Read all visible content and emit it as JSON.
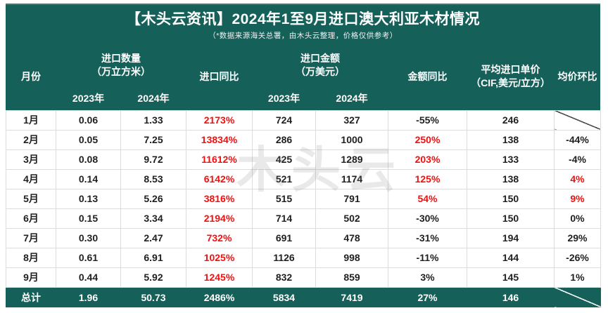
{
  "colors": {
    "green": "#16605a",
    "red": "#f40f0f",
    "cell_border": "#dcdcdc",
    "body_text": "#1f1f1f",
    "header_text": "#ffffff"
  },
  "watermark": "木头云",
  "chart_data": {
    "type": "table",
    "title": "【木头云资讯】2024年1至9月进口澳大利亚木材情况",
    "subtitle": "（*数据来源海关总署，由木头云整理，价格仅供参考）",
    "headers": {
      "month": "月份",
      "qty_group_line1": "进口数量",
      "qty_group_line2": "（万立方米）",
      "qty_yoy": "进口同比",
      "amt_group_line1": "进口金额",
      "amt_group_line2": "（万美元）",
      "amt_yoy": "金额同比",
      "avg_price_line1": "平均进口单价",
      "avg_price_line2": "（CIF,美元/立方）",
      "mom": "均价环比",
      "year_2023": "2023年",
      "year_2024": "2024年"
    },
    "rows": [
      {
        "month": "1月",
        "qty2023": "0.06",
        "qty2024": "1.33",
        "qty_yoy": "2173%",
        "qty_yoy_red": true,
        "amt2023": "724",
        "amt2024": "327",
        "amt_yoy": "-55%",
        "amt_yoy_red": false,
        "avg_price": "246",
        "mom": "",
        "mom_red": false,
        "mom_slash": true
      },
      {
        "month": "2月",
        "qty2023": "0.05",
        "qty2024": "7.25",
        "qty_yoy": "13834%",
        "qty_yoy_red": true,
        "amt2023": "286",
        "amt2024": "1000",
        "amt_yoy": "250%",
        "amt_yoy_red": true,
        "avg_price": "138",
        "mom": "-44%",
        "mom_red": false,
        "mom_slash": false
      },
      {
        "month": "3月",
        "qty2023": "0.08",
        "qty2024": "9.72",
        "qty_yoy": "11612%",
        "qty_yoy_red": true,
        "amt2023": "425",
        "amt2024": "1289",
        "amt_yoy": "203%",
        "amt_yoy_red": true,
        "avg_price": "133",
        "mom": "-4%",
        "mom_red": false,
        "mom_slash": false
      },
      {
        "month": "4月",
        "qty2023": "0.14",
        "qty2024": "8.53",
        "qty_yoy": "6142%",
        "qty_yoy_red": true,
        "amt2023": "521",
        "amt2024": "1174",
        "amt_yoy": "125%",
        "amt_yoy_red": true,
        "avg_price": "138",
        "mom": "4%",
        "mom_red": true,
        "mom_slash": false
      },
      {
        "month": "5月",
        "qty2023": "0.13",
        "qty2024": "5.26",
        "qty_yoy": "3816%",
        "qty_yoy_red": true,
        "amt2023": "515",
        "amt2024": "791",
        "amt_yoy": "54%",
        "amt_yoy_red": true,
        "avg_price": "150",
        "mom": "9%",
        "mom_red": true,
        "mom_slash": false
      },
      {
        "month": "6月",
        "qty2023": "0.15",
        "qty2024": "3.34",
        "qty_yoy": "2194%",
        "qty_yoy_red": true,
        "amt2023": "714",
        "amt2024": "502",
        "amt_yoy": "-30%",
        "amt_yoy_red": false,
        "avg_price": "150",
        "mom": "0%",
        "mom_red": false,
        "mom_slash": false
      },
      {
        "month": "7月",
        "qty2023": "0.30",
        "qty2024": "2.47",
        "qty_yoy": "732%",
        "qty_yoy_red": true,
        "amt2023": "691",
        "amt2024": "478",
        "amt_yoy": "-31%",
        "amt_yoy_red": false,
        "avg_price": "194",
        "mom": "29%",
        "mom_red": false,
        "mom_slash": false
      },
      {
        "month": "8月",
        "qty2023": "0.61",
        "qty2024": "6.91",
        "qty_yoy": "1025%",
        "qty_yoy_red": true,
        "amt2023": "1126",
        "amt2024": "998",
        "amt_yoy": "-11%",
        "amt_yoy_red": false,
        "avg_price": "144",
        "mom": "-26%",
        "mom_red": false,
        "mom_slash": false
      },
      {
        "month": "9月",
        "qty2023": "0.44",
        "qty2024": "5.92",
        "qty_yoy": "1245%",
        "qty_yoy_red": true,
        "amt2023": "832",
        "amt2024": "859",
        "amt_yoy": "3%",
        "amt_yoy_red": false,
        "avg_price": "145",
        "mom": "1%",
        "mom_red": false,
        "mom_slash": false
      }
    ],
    "total": {
      "label": "总计",
      "qty2023": "1.96",
      "qty2024": "50.73",
      "qty_yoy": "2486%",
      "amt2023": "5834",
      "amt2024": "7419",
      "amt_yoy": "27%",
      "avg_price": "146",
      "mom": "",
      "mom_slash": true
    }
  }
}
